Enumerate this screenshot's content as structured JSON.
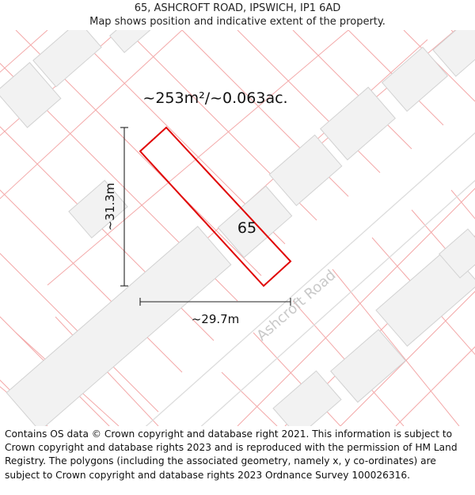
{
  "header": {
    "title": "65, ASHCROFT ROAD, IPSWICH, IP1 6AD",
    "subtitle": "Map shows position and indicative extent of the property."
  },
  "map": {
    "area_label": "~253m²/~0.063ac.",
    "house_number": "65",
    "road_name": "Ashcroft Road",
    "height_label": "~31.3m",
    "width_label": "~29.7m",
    "colors": {
      "background": "#ffffff",
      "building_fill": "#f2f2f2",
      "building_stroke": "#d2d2d2",
      "boundary_lines": "#f3a8a8",
      "plot_outline": "#e00000",
      "road_edge": "#dcdcdc",
      "road_label": "#c9c9c9"
    }
  },
  "footer": {
    "attribution": "Contains OS data © Crown copyright and database right 2021. This information is subject to Crown copyright and database rights 2023 and is reproduced with the permission of HM Land Registry. The polygons (including the associated geometry, namely x, y co-ordinates) are subject to Crown copyright and database rights 2023 Ordnance Survey 100026316."
  }
}
